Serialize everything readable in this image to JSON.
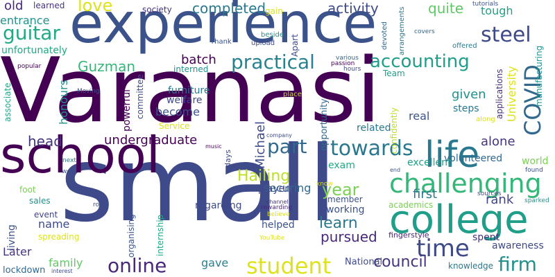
{
  "words": [
    {
      "text": "Varanasi",
      "color": "#440154"
    },
    {
      "text": "experience",
      "color": "#3b528b"
    },
    {
      "text": "small",
      "color": "#3e4a89"
    },
    {
      "text": "school",
      "color": "#440154"
    },
    {
      "text": "college",
      "color": "#1f9e89"
    },
    {
      "text": "life",
      "color": "#2a788e"
    },
    {
      "text": "challenging",
      "color": "#35b779"
    },
    {
      "text": "time",
      "color": "#3e4a89"
    },
    {
      "text": "student",
      "color": "#dde318"
    },
    {
      "text": "online",
      "color": "#482878"
    },
    {
      "text": "firm",
      "color": "#21918c"
    },
    {
      "text": "towards",
      "color": "#2a788e"
    },
    {
      "text": "part",
      "color": "#31688e"
    },
    {
      "text": "practical",
      "color": "#26828e"
    },
    {
      "text": "accounting",
      "color": "#1f9e89"
    },
    {
      "text": "steel",
      "color": "#3e4a89"
    },
    {
      "text": "COVID",
      "color": "#31688e"
    },
    {
      "text": "guitar",
      "color": "#22a884"
    },
    {
      "text": "love",
      "color": "#dde318"
    },
    {
      "text": "Guzman",
      "color": "#35b779"
    },
    {
      "text": "Hailing",
      "color": "#bddf26"
    },
    {
      "text": "year",
      "color": "#7ad151"
    },
    {
      "text": "learn",
      "color": "#2a788e"
    },
    {
      "text": "pursued",
      "color": "#482878"
    },
    {
      "text": "council",
      "color": "#46337e"
    },
    {
      "text": "undergraduate",
      "color": "#440154"
    },
    {
      "text": "head",
      "color": "#46337e"
    },
    {
      "text": "completed",
      "color": "#2a788e"
    },
    {
      "text": "activity",
      "color": "#3e4a89"
    },
    {
      "text": "quite",
      "color": "#5ec962"
    },
    {
      "text": "tough",
      "color": "#1f9e89"
    },
    {
      "text": "entrance",
      "color": "#21918c"
    },
    {
      "text": "old",
      "color": "#482878"
    },
    {
      "text": "unfortunately",
      "color": "#22a884"
    },
    {
      "text": "batch",
      "color": "#440154"
    },
    {
      "text": "given",
      "color": "#21918c"
    },
    {
      "text": "steps",
      "color": "#2a788e"
    },
    {
      "text": "real",
      "color": "#3b528b"
    },
    {
      "text": "alone",
      "color": "#46337e"
    },
    {
      "text": "rank",
      "color": "#414487"
    },
    {
      "text": "first",
      "color": "#2a788e"
    },
    {
      "text": "name",
      "color": "#3e4a89"
    },
    {
      "text": "exam",
      "color": "#22a884"
    },
    {
      "text": "securing",
      "color": "#31688e"
    },
    {
      "text": "become",
      "color": "#3b528b"
    },
    {
      "text": "powerful",
      "color": "#440154"
    },
    {
      "text": "honours",
      "color": "#21918c"
    },
    {
      "text": "Michael",
      "color": "#3e4a89"
    },
    {
      "text": "University",
      "color": "#dde318"
    },
    {
      "text": "applications",
      "color": "#472d7b"
    },
    {
      "text": "manufacturing",
      "color": "#21918c"
    },
    {
      "text": "family",
      "color": "#5ec962"
    },
    {
      "text": "gave",
      "color": "#26828e"
    },
    {
      "text": "regarding",
      "color": "#3e4a89"
    },
    {
      "text": "living",
      "color": "#3b528b"
    },
    {
      "text": "Later",
      "color": "#46337e"
    },
    {
      "text": "lockdown",
      "color": "#31688e"
    },
    {
      "text": "National",
      "color": "#3e4a89"
    },
    {
      "text": "knowledge",
      "color": "#2a788e"
    },
    {
      "text": "awareness",
      "color": "#3e4a89"
    },
    {
      "text": "spent",
      "color": "#46337e"
    },
    {
      "text": "helped",
      "color": "#3b528b"
    },
    {
      "text": "working",
      "color": "#3b528b"
    },
    {
      "text": "player",
      "color": "#3e4a89"
    },
    {
      "text": "volunteered",
      "color": "#31688e"
    },
    {
      "text": "excellent",
      "color": "#1f9e89"
    },
    {
      "text": "world",
      "color": "#7ad151"
    },
    {
      "text": "related",
      "color": "#2a788e"
    },
    {
      "text": "opportunity",
      "color": "#31688e"
    },
    {
      "text": "furniture",
      "color": "#2a788e"
    },
    {
      "text": "welfare",
      "color": "#3e4a89"
    },
    {
      "text": "Service",
      "color": "#dde318"
    },
    {
      "text": "committee",
      "color": "#3e4a89"
    },
    {
      "text": "internship",
      "color": "#22a884"
    },
    {
      "text": "organising",
      "color": "#3b528b"
    },
    {
      "text": "associate",
      "color": "#22a884"
    },
    {
      "text": "sales",
      "color": "#21918c"
    },
    {
      "text": "event",
      "color": "#414487"
    },
    {
      "text": "spreading",
      "color": "#dde318"
    },
    {
      "text": "foot",
      "color": "#7ad151"
    },
    {
      "text": "academics",
      "color": "#7ad151"
    },
    {
      "text": "member",
      "color": "#3b528b"
    },
    {
      "text": "fingerstyle",
      "color": "#482878"
    },
    {
      "text": "confidently",
      "color": "#bddf26"
    },
    {
      "text": "interned",
      "color": "#21918c"
    },
    {
      "text": "days",
      "color": "#3e4a89"
    },
    {
      "text": "society",
      "color": "#46337e"
    },
    {
      "text": "learned",
      "color": "#46337e"
    },
    {
      "text": "gain",
      "color": "#dde318"
    },
    {
      "text": "Apart",
      "color": "#3e4a89"
    },
    {
      "text": "devoted",
      "color": "#31688e"
    },
    {
      "text": "arrangements",
      "color": "#2a788e"
    },
    {
      "text": "tutorials",
      "color": "#3b528b"
    },
    {
      "text": "offered",
      "color": "#2a788e"
    },
    {
      "text": "covers",
      "color": "#31688e"
    },
    {
      "text": "beside",
      "color": "#21918c"
    },
    {
      "text": "upload",
      "color": "#3e4a89"
    },
    {
      "text": "Thank",
      "color": "#3b528b"
    },
    {
      "text": "various",
      "color": "#31688e"
    },
    {
      "text": "passion",
      "color": "#440154"
    },
    {
      "text": "hours",
      "color": "#3e4a89"
    },
    {
      "text": "Team",
      "color": "#1f9e89"
    },
    {
      "text": "popular",
      "color": "#440154"
    },
    {
      "text": "Moving",
      "color": "#3b528b"
    },
    {
      "text": "place",
      "color": "#bddf26"
    },
    {
      "text": "company",
      "color": "#3e4a89"
    },
    {
      "text": "along",
      "color": "#dde318"
    },
    {
      "text": "music",
      "color": "#440154"
    },
    {
      "text": "next",
      "color": "#2a788e"
    },
    {
      "text": "well",
      "color": "#3b528b"
    },
    {
      "text": "end",
      "color": "#3b528b"
    },
    {
      "text": "found",
      "color": "#3b528b"
    },
    {
      "text": "know",
      "color": "#dde318"
    },
    {
      "text": "role",
      "color": "#3b528b"
    },
    {
      "text": "channel",
      "color": "#46337e"
    },
    {
      "text": "rewarding",
      "color": "#482878"
    },
    {
      "text": "believe",
      "color": "#dde318"
    },
    {
      "text": "sources",
      "color": "#3e4a89"
    },
    {
      "text": "sparked",
      "color": "#21918c"
    },
    {
      "text": "YouTube",
      "color": "#dde318"
    },
    {
      "text": "interest",
      "color": "#3e4a89"
    }
  ]
}
